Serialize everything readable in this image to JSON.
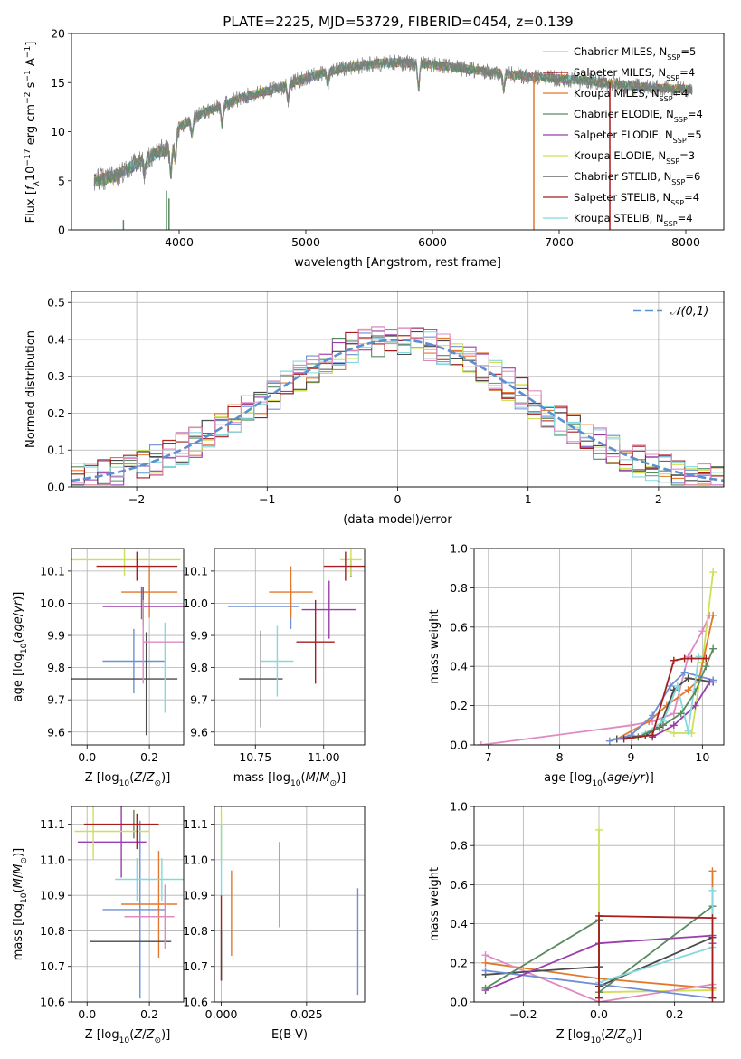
{
  "title": "PLATE=2225, MJD=53729, FIBERID=0454, z=0.139",
  "colors": {
    "series": [
      "#6f8fd6",
      "#e2782c",
      "#5a8a5f",
      "#9a3dad",
      "#cfe054",
      "#4a4a4a",
      "#a51f1f",
      "#85d9dc",
      "#e08bc0"
    ],
    "gray": "#7f7f7f",
    "gauss": "#5b8fd0"
  },
  "legend_spec": [
    {
      "imf": "Chabrier",
      "lib": "MILES",
      "n": "5"
    },
    {
      "imf": "Salpeter",
      "lib": "MILES",
      "n": "4"
    },
    {
      "imf": "Kroupa",
      "lib": "MILES",
      "n": "4"
    },
    {
      "imf": "Chabrier",
      "lib": "ELODIE",
      "n": "4"
    },
    {
      "imf": "Salpeter",
      "lib": "ELODIE",
      "n": "5"
    },
    {
      "imf": "Kroupa",
      "lib": "ELODIE",
      "n": "3"
    },
    {
      "imf": "Chabrier",
      "lib": "STELIB",
      "n": "6"
    },
    {
      "imf": "Salpeter",
      "lib": "STELIB",
      "n": "4"
    },
    {
      "imf": "Kroupa",
      "lib": "STELIB",
      "n": "4"
    }
  ],
  "legend_colors": [
    "#85d9dc",
    "#a51f1f",
    "#e2782c",
    "#5a8a5f",
    "#9a3dad",
    "#cfe054",
    "#4a4a4a",
    "#a51f1f",
    "#85d9dc"
  ],
  "chart_data": [
    {
      "id": "spectrum",
      "type": "line",
      "xlabel": "wavelength [Angstrom, rest frame]",
      "ylabel": "Flux [f_λ 10^-17 erg cm^-2 s^-1 A^-1]",
      "xlim": [
        3150,
        8300
      ],
      "ylim": [
        0,
        20
      ],
      "xticks": [
        4000,
        5000,
        6000,
        7000,
        8000
      ],
      "yticks": [
        0,
        5,
        10,
        15,
        20
      ],
      "continuum": [
        [
          3330,
          5.0
        ],
        [
          3500,
          5.5
        ],
        [
          3700,
          7.0
        ],
        [
          3850,
          8.0
        ],
        [
          3950,
          8.5
        ],
        [
          4000,
          10.5
        ],
        [
          4200,
          12.0
        ],
        [
          4500,
          13.5
        ],
        [
          4800,
          14.5
        ],
        [
          5000,
          15.5
        ],
        [
          5300,
          16.5
        ],
        [
          5600,
          17.0
        ],
        [
          5900,
          17.0
        ],
        [
          6200,
          16.5
        ],
        [
          6500,
          16.0
        ],
        [
          6800,
          15.6
        ],
        [
          7200,
          15.2
        ],
        [
          7600,
          14.6
        ],
        [
          8050,
          14.3
        ]
      ]
    },
    {
      "id": "residuals",
      "type": "histogram",
      "xlabel": "(data-model)/error",
      "ylabel": "Normed distribution",
      "xlim": [
        -2.5,
        2.5
      ],
      "ylim": [
        0,
        0.53
      ],
      "xticks": [
        -2,
        -1,
        0,
        1,
        2
      ],
      "yticks": [
        0.0,
        0.1,
        0.2,
        0.3,
        0.4,
        0.5
      ],
      "legend": "𝒩(0,1)",
      "bin_width": 0.1
    },
    {
      "id": "age_vs_Z",
      "type": "errorbar",
      "xlabel": "Z [log10(Z/Z⊙)]",
      "ylabel": "age [log10(age/yr)]",
      "xlim": [
        -0.05,
        0.31
      ],
      "ylim": [
        9.56,
        10.17
      ],
      "xticks": [
        0.0,
        0.2
      ],
      "yticks": [
        9.6,
        9.7,
        9.8,
        9.9,
        10.0,
        10.1
      ],
      "points": [
        {
          "c": 0,
          "x": 0.15,
          "xe": 0.1,
          "y": 9.82,
          "ye": 0.1
        },
        {
          "c": 1,
          "x": 0.2,
          "xe": 0.09,
          "y": 10.035,
          "ye": 0.08
        },
        {
          "c": 2,
          "x": 0.175,
          "xe": 0.0,
          "y": 10.0,
          "ye": 0.05
        },
        {
          "c": 3,
          "x": 0.18,
          "xe": 0.13,
          "y": 9.99,
          "ye": 0.06
        },
        {
          "c": 4,
          "x": 0.12,
          "xe": 0.18,
          "y": 10.135,
          "ye": 0.05
        },
        {
          "c": 5,
          "x": 0.12,
          "xe": 0.17,
          "y": 9.765,
          "ye": 0.0
        },
        {
          "c": 5,
          "x": 0.19,
          "xe": 0.0,
          "y": 9.75,
          "ye": 0.16
        },
        {
          "c": 6,
          "x": 0.16,
          "xe": 0.13,
          "y": 10.115,
          "ye": 0.045
        },
        {
          "c": 7,
          "x": 0.25,
          "xe": 0.0,
          "y": 9.8,
          "ye": 0.14
        },
        {
          "c": 8,
          "x": 0.3,
          "xe": 0.12,
          "y": 9.88,
          "ye": 0.0
        },
        {
          "c": 8,
          "x": 0.18,
          "xe": 0.0,
          "y": 9.88,
          "ye": 0.13
        },
        {
          "c": 9,
          "x": 0.23,
          "xe": 0.0,
          "y": 9.98,
          "ye": 0.15
        }
      ]
    },
    {
      "id": "age_vs_mass",
      "type": "errorbar",
      "xlabel": "mass [log10(M/M⊙)]",
      "ylabel": "",
      "xlim": [
        10.6,
        11.15
      ],
      "ylim": [
        9.56,
        10.17
      ],
      "xticks": [
        10.75,
        11.0
      ],
      "yticks": [
        9.6,
        9.7,
        9.8,
        9.9,
        10.0,
        10.1
      ],
      "points": [
        {
          "c": 0,
          "x": 10.78,
          "xe": 0.13,
          "y": 9.99,
          "ye": 0.0
        },
        {
          "c": 0,
          "x": 10.88,
          "xe": 0.0,
          "y": 9.99,
          "ye": 0.07
        },
        {
          "c": 1,
          "x": 10.88,
          "xe": 0.08,
          "y": 10.035,
          "ye": 0.08
        },
        {
          "c": 2,
          "x": 11.1,
          "xe": 0.0,
          "y": 10.11,
          "ye": 0.03
        },
        {
          "c": 3,
          "x": 11.02,
          "xe": 0.1,
          "y": 9.98,
          "ye": 0.0
        },
        {
          "c": 3,
          "x": 11.02,
          "xe": 0.0,
          "y": 9.98,
          "ye": 0.09
        },
        {
          "c": 4,
          "x": 11.1,
          "xe": 0.04,
          "y": 10.135,
          "ye": 0.05
        },
        {
          "c": 5,
          "x": 10.77,
          "xe": 0.08,
          "y": 9.765,
          "ye": 0.0
        },
        {
          "c": 5,
          "x": 10.77,
          "xe": 0.0,
          "y": 9.765,
          "ye": 0.15
        },
        {
          "c": 6,
          "x": 11.08,
          "xe": 0.08,
          "y": 10.115,
          "ye": 0.045
        },
        {
          "c": 6,
          "x": 10.97,
          "xe": 0.0,
          "y": 9.88,
          "ye": 0.13
        },
        {
          "c": 6,
          "x": 10.97,
          "xe": 0.07,
          "y": 9.88,
          "ye": 0.0
        },
        {
          "c": 7,
          "x": 10.83,
          "xe": 0.06,
          "y": 9.82,
          "ye": 0.0
        },
        {
          "c": 7,
          "x": 10.83,
          "xe": 0.0,
          "y": 9.82,
          "ye": 0.11
        }
      ]
    },
    {
      "id": "weights_vs_age",
      "type": "line",
      "xlabel": "age [log10(age/yr)]",
      "ylabel": "mass weight",
      "xlim": [
        6.8,
        10.3
      ],
      "ylim": [
        0,
        1
      ],
      "xticks": [
        7,
        8,
        9,
        10
      ],
      "yticks": [
        0.0,
        0.2,
        0.4,
        0.6,
        0.8,
        1.0
      ],
      "series": [
        {
          "c": 8,
          "points": [
            [
              6.9,
              0.0
            ],
            [
              9.0,
              0.1
            ],
            [
              9.3,
              0.12
            ],
            [
              9.6,
              0.16
            ],
            [
              9.8,
              0.45
            ],
            [
              10.0,
              0.58
            ],
            [
              10.1,
              0.66
            ]
          ]
        },
        {
          "c": 4,
          "points": [
            [
              9.4,
              0.08
            ],
            [
              9.6,
              0.06
            ],
            [
              9.85,
              0.06
            ],
            [
              10.0,
              0.42
            ],
            [
              10.15,
              0.88
            ]
          ]
        },
        {
          "c": 1,
          "points": [
            [
              8.8,
              0.03
            ],
            [
              9.25,
              0.12
            ],
            [
              9.5,
              0.2
            ],
            [
              9.8,
              0.28
            ],
            [
              9.95,
              0.33
            ],
            [
              10.15,
              0.66
            ]
          ]
        },
        {
          "c": 5,
          "points": [
            [
              8.8,
              0.03
            ],
            [
              9.2,
              0.05
            ],
            [
              9.4,
              0.09
            ],
            [
              9.6,
              0.28
            ],
            [
              9.8,
              0.34
            ],
            [
              10.15,
              0.32
            ]
          ]
        },
        {
          "c": 0,
          "points": [
            [
              8.7,
              0.02
            ],
            [
              9.0,
              0.05
            ],
            [
              9.3,
              0.15
            ],
            [
              9.55,
              0.3
            ],
            [
              9.75,
              0.37
            ],
            [
              10.15,
              0.33
            ]
          ]
        },
        {
          "c": 3,
          "points": [
            [
              9.3,
              0.04
            ],
            [
              9.6,
              0.1
            ],
            [
              9.9,
              0.2
            ],
            [
              10.1,
              0.32
            ]
          ]
        },
        {
          "c": 7,
          "points": [
            [
              9.2,
              0.06
            ],
            [
              9.45,
              0.12
            ],
            [
              9.65,
              0.3
            ],
            [
              9.8,
              0.07
            ],
            [
              9.95,
              0.45
            ]
          ]
        },
        {
          "c": 2,
          "points": [
            [
              9.1,
              0.04
            ],
            [
              9.45,
              0.1
            ],
            [
              9.7,
              0.16
            ],
            [
              9.9,
              0.27
            ],
            [
              10.05,
              0.4
            ],
            [
              10.15,
              0.49
            ]
          ]
        },
        {
          "c": 6,
          "points": [
            [
              8.9,
              0.03
            ],
            [
              9.3,
              0.05
            ],
            [
              9.6,
              0.43
            ],
            [
              9.75,
              0.44
            ],
            [
              9.85,
              0.44
            ],
            [
              10.05,
              0.44
            ]
          ]
        }
      ]
    },
    {
      "id": "mass_vs_Z",
      "type": "errorbar",
      "xlabel": "Z [log10(Z/Z⊙)]",
      "ylabel": "mass [log10(M/M⊙)]",
      "xlim": [
        -0.05,
        0.31
      ],
      "ylim": [
        10.6,
        11.15
      ],
      "xticks": [
        0.0,
        0.2
      ],
      "yticks": [
        10.6,
        10.7,
        10.8,
        10.9,
        11.0,
        11.1
      ],
      "points": [
        {
          "c": 0,
          "x": 0.15,
          "xe": 0.1,
          "y": 10.86,
          "ye": 0.0
        },
        {
          "c": 0,
          "x": 0.17,
          "xe": 0.0,
          "y": 10.86,
          "ye": 0.25
        },
        {
          "c": 1,
          "x": 0.2,
          "xe": 0.09,
          "y": 10.875,
          "ye": 0.0
        },
        {
          "c": 1,
          "x": 0.23,
          "xe": 0.0,
          "y": 10.875,
          "ye": 0.15
        },
        {
          "c": 2,
          "x": 0.15,
          "xe": 0.0,
          "y": 11.1,
          "ye": 0.04
        },
        {
          "c": 3,
          "x": 0.08,
          "xe": 0.11,
          "y": 11.05,
          "ye": 0.0
        },
        {
          "c": 3,
          "x": 0.11,
          "xe": 0.0,
          "y": 11.05,
          "ye": 0.1
        },
        {
          "c": 4,
          "x": 0.08,
          "xe": 0.12,
          "y": 11.08,
          "ye": 0.0
        },
        {
          "c": 4,
          "x": 0.02,
          "xe": 0.0,
          "y": 11.08,
          "ye": 0.08
        },
        {
          "c": 5,
          "x": 0.14,
          "xe": 0.13,
          "y": 10.77,
          "ye": 0.0
        },
        {
          "c": 6,
          "x": 0.11,
          "xe": 0.12,
          "y": 11.1,
          "ye": 0.0
        },
        {
          "c": 6,
          "x": 0.16,
          "xe": 0.0,
          "y": 11.08,
          "ye": 0.05
        },
        {
          "c": 7,
          "x": 0.21,
          "xe": 0.12,
          "y": 10.945,
          "ye": 0.0
        },
        {
          "c": 7,
          "x": 0.16,
          "xe": 0.0,
          "y": 10.945,
          "ye": 0.06
        },
        {
          "c": 7,
          "x": 0.24,
          "xe": 0.0,
          "y": 10.945,
          "ye": 0.06
        },
        {
          "c": 8,
          "x": 0.2,
          "xe": 0.08,
          "y": 10.84,
          "ye": 0.0
        },
        {
          "c": 8,
          "x": 0.25,
          "xe": 0.0,
          "y": 10.84,
          "ye": 0.09
        }
      ]
    },
    {
      "id": "mass_vs_ebv",
      "type": "errorbar",
      "xlabel": "E(B-V)",
      "ylabel": "",
      "xlim": [
        -0.002,
        0.042
      ],
      "ylim": [
        10.6,
        11.15
      ],
      "xticks": [
        0.0,
        0.025
      ],
      "yticks": [
        10.6,
        10.7,
        10.8,
        10.9,
        11.0,
        11.1
      ],
      "points": [
        {
          "c": 4,
          "x": 0.0,
          "xe": 0.0,
          "y": 11.07,
          "ye": 0.07
        },
        {
          "c": 6,
          "x": 0.0,
          "xe": 0.0,
          "y": 10.78,
          "ye": 0.12
        },
        {
          "c": 5,
          "x": 0.0,
          "xe": 0.0,
          "y": 10.73,
          "ye": 0.07
        },
        {
          "c": 7,
          "x": 0.0,
          "xe": 0.0,
          "y": 11.0,
          "ye": 0.1
        },
        {
          "c": 1,
          "x": 0.003,
          "xe": 0.0,
          "y": 10.85,
          "ye": 0.12
        },
        {
          "c": 8,
          "x": 0.017,
          "xe": 0.0,
          "y": 10.93,
          "ye": 0.12
        },
        {
          "c": 0,
          "x": 0.04,
          "xe": 0.0,
          "y": 10.77,
          "ye": 0.15
        }
      ]
    },
    {
      "id": "weights_vs_Z",
      "type": "line",
      "xlabel": "Z [log10(Z/Z⊙)]",
      "ylabel": "mass weight",
      "xlim": [
        -0.33,
        0.33
      ],
      "ylim": [
        0,
        1
      ],
      "xticks": [
        -0.2,
        0.0,
        0.2
      ],
      "yticks": [
        0.0,
        0.2,
        0.4,
        0.6,
        0.8,
        1.0
      ],
      "series": [
        {
          "c": 4,
          "points": [
            [
              0.0,
              0.88
            ],
            [
              0.0,
              0.05
            ],
            [
              0.3,
              0.06
            ]
          ]
        },
        {
          "c": 1,
          "points": [
            [
              -0.3,
              0.2
            ],
            [
              0.0,
              0.12
            ],
            [
              0.3,
              0.07
            ],
            [
              0.3,
              0.67
            ]
          ]
        },
        {
          "c": 8,
          "points": [
            [
              -0.3,
              0.24
            ],
            [
              0.0,
              0.0
            ],
            [
              0.3,
              0.09
            ]
          ]
        },
        {
          "c": 5,
          "points": [
            [
              -0.3,
              0.14
            ],
            [
              0.0,
              0.18
            ],
            [
              0.0,
              0.08
            ],
            [
              0.3,
              0.33
            ]
          ]
        },
        {
          "c": 0,
          "points": [
            [
              -0.3,
              0.16
            ],
            [
              0.0,
              0.09
            ],
            [
              0.3,
              0.02
            ]
          ]
        },
        {
          "c": 3,
          "points": [
            [
              -0.3,
              0.06
            ],
            [
              0.0,
              0.3
            ],
            [
              0.3,
              0.34
            ],
            [
              0.3,
              0.3
            ]
          ]
        },
        {
          "c": 2,
          "points": [
            [
              -0.3,
              0.07
            ],
            [
              0.0,
              0.42
            ],
            [
              0.0,
              0.05
            ],
            [
              0.3,
              0.49
            ]
          ]
        },
        {
          "c": 7,
          "points": [
            [
              0.0,
              0.1
            ],
            [
              0.3,
              0.28
            ],
            [
              0.3,
              0.57
            ]
          ]
        },
        {
          "c": 6,
          "points": [
            [
              0.0,
              0.02
            ],
            [
              0.0,
              0.44
            ],
            [
              0.3,
              0.43
            ],
            [
              0.3,
              0.02
            ]
          ]
        }
      ]
    }
  ]
}
